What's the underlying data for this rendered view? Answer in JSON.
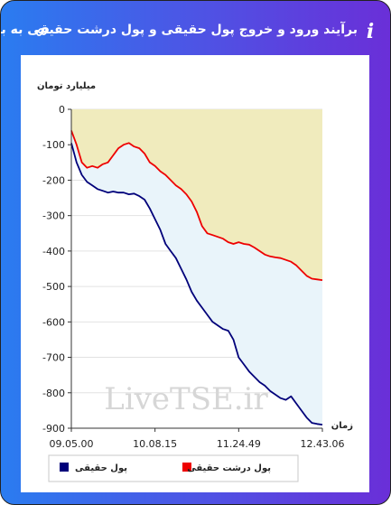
{
  "header": {
    "title": "برآیند ورود و خروج پول حقیقی و پول درشت حقیقی به بازار",
    "info_icon": "info-icon",
    "link_icon": "link-icon"
  },
  "chart_data": {
    "type": "line",
    "ylabel": "میلیارد تومان",
    "xlabel": "زمان",
    "ylim": [
      -900,
      0
    ],
    "yticks": [
      "0",
      "-100",
      "-200",
      "-300",
      "-400",
      "-500",
      "-600",
      "-700",
      "-800",
      "-900"
    ],
    "xticks": [
      "09.05.00",
      "10.08.15",
      "11.24.49",
      "12.43.06"
    ],
    "watermark": "LiveTSE.ir",
    "legend_position": "bottom",
    "colors": {
      "area_top": "#f0ebbd",
      "area_between": "#e9f4fa",
      "grid": "#e2e2e2"
    },
    "series": [
      {
        "name": "پول درشت حقیقی",
        "color": "#ee0000",
        "values": [
          -60,
          -100,
          -150,
          -165,
          -160,
          -165,
          -155,
          -150,
          -130,
          -110,
          -100,
          -95,
          -105,
          -110,
          -125,
          -150,
          -160,
          -175,
          -185,
          -200,
          -215,
          -225,
          -240,
          -260,
          -290,
          -330,
          -350,
          -355,
          -360,
          -365,
          -375,
          -380,
          -375,
          -380,
          -382,
          -390,
          -400,
          -410,
          -415,
          -418,
          -420,
          -425,
          -430,
          -440,
          -455,
          -470,
          -478,
          -480,
          -482
        ]
      },
      {
        "name": "پول حقیقی",
        "color": "#00007a",
        "values": [
          -95,
          -150,
          -185,
          -205,
          -215,
          -225,
          -230,
          -235,
          -232,
          -235,
          -235,
          -240,
          -238,
          -245,
          -255,
          -280,
          -310,
          -340,
          -380,
          -400,
          -420,
          -450,
          -480,
          -515,
          -540,
          -560,
          -580,
          -600,
          -610,
          -620,
          -625,
          -650,
          -700,
          -720,
          -740,
          -755,
          -770,
          -780,
          -795,
          -805,
          -815,
          -820,
          -810,
          -830,
          -850,
          -870,
          -885,
          -888,
          -890
        ]
      }
    ]
  }
}
